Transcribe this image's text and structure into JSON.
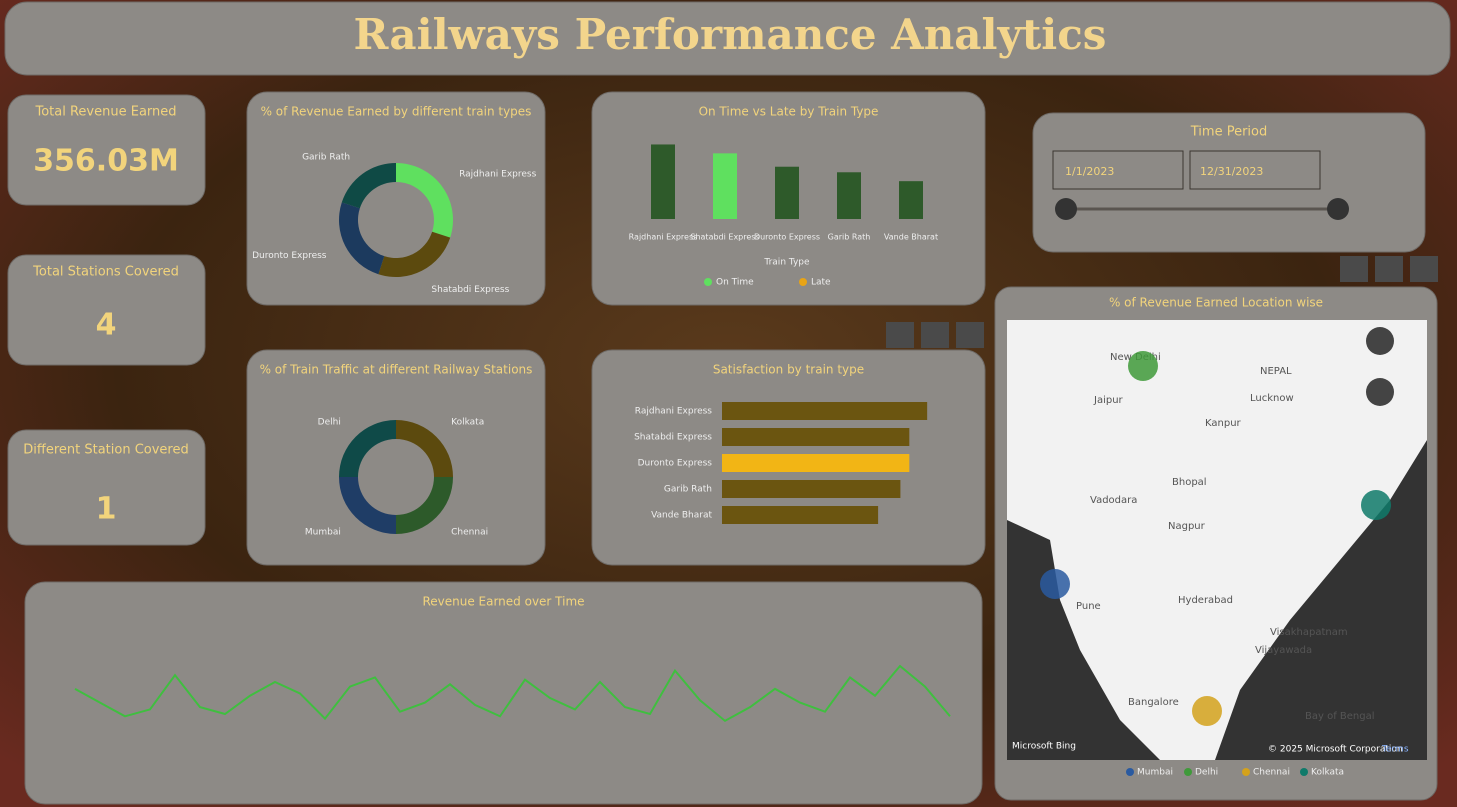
{
  "header": {
    "title": "Railways Performance Analytics"
  },
  "cards": [
    {
      "label": "Total Revenue Earned",
      "value": "356.03M"
    },
    {
      "label": "Total Stations Covered",
      "value": "4"
    },
    {
      "label": "Different Station Covered",
      "value": "1"
    }
  ],
  "slicer": {
    "title": "Time Period",
    "start": "1/1/2023",
    "end": "12/31/2023"
  },
  "map": {
    "provider": "Microsoft Bing",
    "attribution": "© 2025 Microsoft Corporation",
    "terms": "Terms",
    "places": [
      "New Delhi",
      "Jaipur",
      "Lucknow",
      "Kanpur",
      "NEPAL",
      "Bhopal",
      "Vadodara",
      "Nagpur",
      "Pune",
      "Hyderabad",
      "Visakhapatnam",
      "Vijayawada",
      "Bangalore",
      "Bay of Bengal"
    ]
  },
  "chart_data": [
    {
      "type": "donut",
      "title": "% of Revenue Earned by different train types",
      "categories": [
        "Rajdhani Express",
        "Shatabdi Express",
        "Duronto Express",
        "Garib Rath"
      ],
      "values": [
        30,
        25,
        25,
        20
      ],
      "colors": [
        "#5fe05f",
        "#5c4a0e",
        "#1c3a5e",
        "#0f4a45"
      ]
    },
    {
      "type": "vbar",
      "title": "On Time vs Late by Train Type",
      "categories": [
        "Rajdhani Express",
        "Shatabdi Express",
        "Duronto Express",
        "Garib Rath",
        "Vande Bharat"
      ],
      "values": [
        67,
        59,
        47,
        42,
        34
      ],
      "colors": [
        "#2e5a2a",
        "#5fe05f",
        "#2e5a2a",
        "#2e5a2a",
        "#2e5a2a"
      ],
      "ylim": [
        0,
        80
      ],
      "x_label": "Train Type",
      "legend": [
        {
          "name": "On Time",
          "color": "#5fe05f"
        },
        {
          "name": "Late",
          "color": "#e8a416"
        }
      ]
    },
    {
      "type": "donut",
      "title": "% of Train Traffic at different Railway Stations",
      "categories": [
        "Kolkata",
        "Chennai",
        "Mumbai",
        "Delhi"
      ],
      "values": [
        25,
        25,
        25,
        25
      ],
      "colors": [
        "#5c4a0e",
        "#2d5a2a",
        "#1f3d66",
        "#0f4a48"
      ]
    },
    {
      "type": "hbar",
      "title": "Satisfaction by train type",
      "categories": [
        "Rajdhani Express",
        "Shatabdi Express",
        "Duronto Express",
        "Garib Rath",
        "Vande Bharat"
      ],
      "values": [
        4.6,
        4.2,
        4.2,
        4.0,
        3.5
      ],
      "colors": [
        "#6b5510",
        "#6b5510",
        "#f2b515",
        "#6b5510",
        "#6b5510"
      ],
      "xlim": [
        0,
        5
      ]
    },
    {
      "type": "line",
      "title": "Revenue Earned over Time",
      "values": [
        11.8,
        11.2,
        10.6,
        10.9,
        12.4,
        11.0,
        10.7,
        11.5,
        12.1,
        11.6,
        10.5,
        11.9,
        12.3,
        10.8,
        11.2,
        12.0,
        11.1,
        10.6,
        12.2,
        11.4,
        10.9,
        12.1,
        11.0,
        10.7,
        12.6,
        11.3,
        10.4,
        11.0,
        11.8,
        11.2,
        10.8,
        12.3,
        11.5,
        12.8,
        11.9,
        10.6
      ],
      "color": "#3fbf3f",
      "ylim": [
        10,
        13.5
      ]
    },
    {
      "type": "map",
      "title": "% of Revenue Earned Location wise",
      "categories": [
        "Mumbai",
        "Delhi",
        "Chennai",
        "Kolkata"
      ],
      "values": [
        25,
        25,
        25,
        25
      ],
      "colors": [
        "#2a5aa0",
        "#3f9a3a",
        "#d4a21c",
        "#0f7a6a"
      ]
    }
  ]
}
